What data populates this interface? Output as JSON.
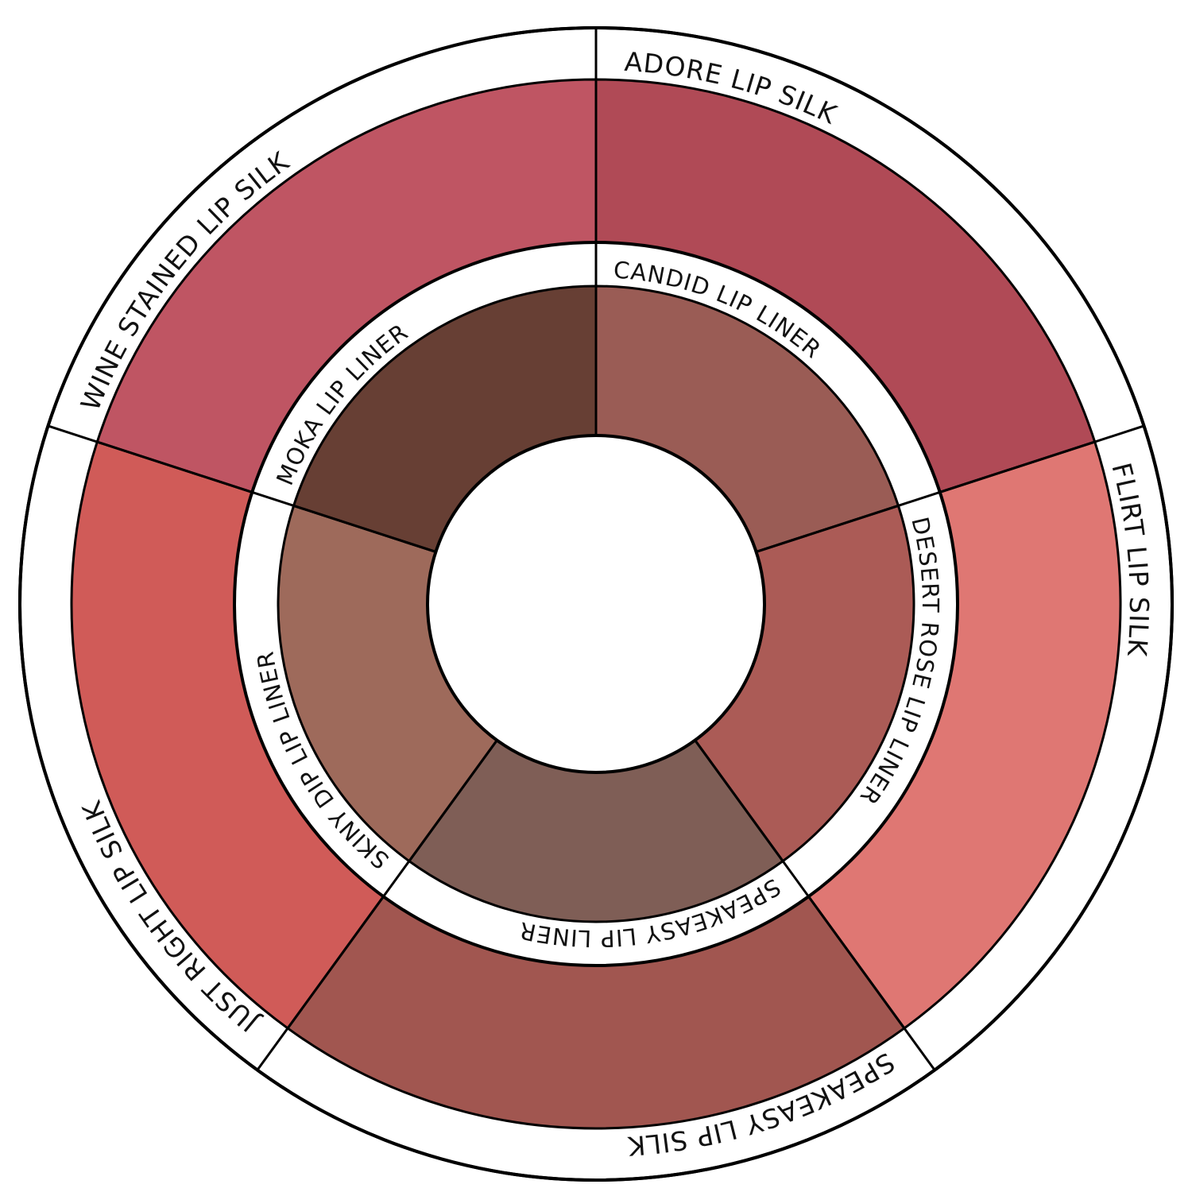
{
  "outer_ring": [
    {
      "label": "ADORE LIP SILK",
      "color": "#b04a56"
    },
    {
      "label": "FLIRT LIP SILK",
      "color": "#df7773"
    },
    {
      "label": "SPEAKEASY LIP SILK",
      "color": "#a15650"
    },
    {
      "label": "JUST RIGHT LIP SILK",
      "color": "#d05b58"
    },
    {
      "label": "WINE STAINED LIP SILK",
      "color": "#bf5563"
    }
  ],
  "inner_ring": [
    {
      "label": "CANDID LIP LINER",
      "color": "#9a5c55"
    },
    {
      "label": "DESERT ROSE LIP LINER",
      "color": "#ab5b56"
    },
    {
      "label": "SPEAKEASY LIP LINER",
      "color": "#7f5e56"
    },
    {
      "label": "SKINY DIP LIP LINER",
      "color": "#9e6a5b"
    },
    {
      "label": "MOKA LIP LINER",
      "color": "#673f34"
    }
  ]
}
